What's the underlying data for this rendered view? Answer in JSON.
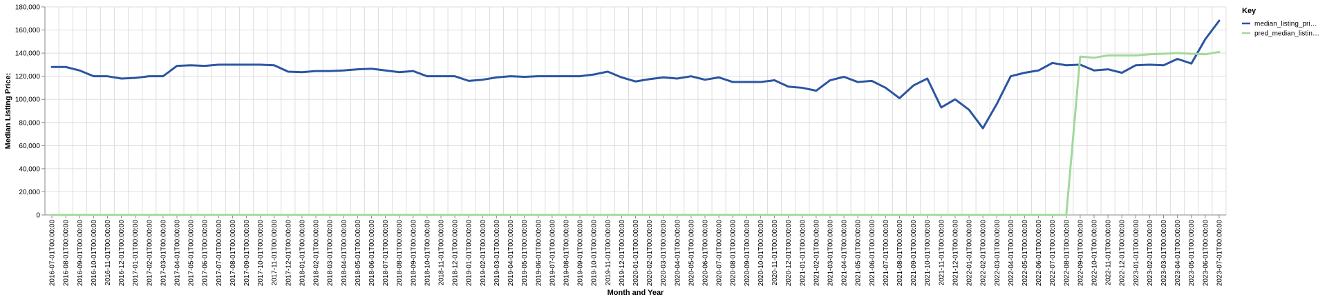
{
  "chart_data": {
    "type": "line",
    "xlabel": "Month and Year",
    "ylabel": "Median Listing Price:",
    "ylim": [
      0,
      180000
    ],
    "y_ticks": [
      "0",
      "20,000",
      "40,000",
      "60,000",
      "80,000",
      "100,000",
      "120,000",
      "140,000",
      "160,000",
      "180,000"
    ],
    "grid": true,
    "legend": {
      "title": "Key",
      "placement": "top-right"
    },
    "x": [
      "2016-07-01T00:00:00",
      "2016-08-01T00:00:00",
      "2016-09-01T00:00:00",
      "2016-10-01T00:00:00",
      "2016-11-01T00:00:00",
      "2016-12-01T00:00:00",
      "2017-01-01T00:00:00",
      "2017-02-01T00:00:00",
      "2017-03-01T00:00:00",
      "2017-04-01T00:00:00",
      "2017-05-01T00:00:00",
      "2017-06-01T00:00:00",
      "2017-07-01T00:00:00",
      "2017-08-01T00:00:00",
      "2017-09-01T00:00:00",
      "2017-10-01T00:00:00",
      "2017-11-01T00:00:00",
      "2017-12-01T00:00:00",
      "2018-01-01T00:00:00",
      "2018-02-01T00:00:00",
      "2018-03-01T00:00:00",
      "2018-04-01T00:00:00",
      "2018-05-01T00:00:00",
      "2018-06-01T00:00:00",
      "2018-07-01T00:00:00",
      "2018-08-01T00:00:00",
      "2018-09-01T00:00:00",
      "2018-10-01T00:00:00",
      "2018-11-01T00:00:00",
      "2018-12-01T00:00:00",
      "2019-01-01T00:00:00",
      "2019-02-01T00:00:00",
      "2019-03-01T00:00:00",
      "2019-04-01T00:00:00",
      "2019-05-01T00:00:00",
      "2019-06-01T00:00:00",
      "2019-07-01T00:00:00",
      "2019-08-01T00:00:00",
      "2019-09-01T00:00:00",
      "2019-10-01T00:00:00",
      "2019-11-01T00:00:00",
      "2019-12-01T00:00:00",
      "2020-01-01T00:00:00",
      "2020-02-01T00:00:00",
      "2020-03-01T00:00:00",
      "2020-04-01T00:00:00",
      "2020-05-01T00:00:00",
      "2020-06-01T00:00:00",
      "2020-07-01T00:00:00",
      "2020-08-01T00:00:00",
      "2020-09-01T00:00:00",
      "2020-10-01T00:00:00",
      "2020-11-01T00:00:00",
      "2020-12-01T00:00:00",
      "2021-01-01T00:00:00",
      "2021-02-01T00:00:00",
      "2021-03-01T00:00:00",
      "2021-04-01T00:00:00",
      "2021-05-01T00:00:00",
      "2021-06-01T00:00:00",
      "2021-07-01T00:00:00",
      "2021-08-01T00:00:00",
      "2021-09-01T00:00:00",
      "2021-10-01T00:00:00",
      "2021-11-01T00:00:00",
      "2021-12-01T00:00:00",
      "2022-01-01T00:00:00",
      "2022-02-01T00:00:00",
      "2022-03-01T00:00:00",
      "2022-04-01T00:00:00",
      "2022-05-01T00:00:00",
      "2022-06-01T00:00:00",
      "2022-07-01T00:00:00",
      "2022-08-01T00:00:00",
      "2022-09-01T00:00:00",
      "2022-10-01T00:00:00",
      "2022-11-01T00:00:00",
      "2022-12-01T00:00:00",
      "2023-01-01T00:00:00",
      "2023-02-01T00:00:00",
      "2023-03-01T00:00:00",
      "2023-04-01T00:00:00",
      "2023-05-01T00:00:00",
      "2023-06-01T00:00:00",
      "2023-07-01T00:00:00"
    ],
    "series": [
      {
        "name": "median_listing_pri…",
        "color": "#2b55a1",
        "values": [
          128000,
          128000,
          125000,
          120000,
          120000,
          118000,
          118500,
          120000,
          120000,
          129000,
          129500,
          129000,
          130000,
          130000,
          130000,
          130000,
          129500,
          124000,
          123500,
          124500,
          124500,
          125000,
          126000,
          126500,
          125000,
          123500,
          124500,
          120000,
          120000,
          120000,
          116000,
          117000,
          119000,
          120000,
          119500,
          120000,
          120000,
          120000,
          120000,
          121500,
          124000,
          119000,
          115500,
          117500,
          119000,
          118000,
          120000,
          117000,
          119000,
          115000,
          115000,
          115000,
          116500,
          111000,
          110000,
          107500,
          116500,
          119500,
          115000,
          116000,
          110000,
          101000,
          112000,
          118000,
          93000,
          100000,
          91000,
          75000,
          96000,
          120000,
          123000,
          125000,
          131500,
          129500,
          130000,
          125000,
          126000,
          123000,
          129500,
          130000,
          129500,
          135000,
          131000,
          152000,
          168000
        ]
      },
      {
        "name": "pred_median_listin…",
        "color": "#a1d99b",
        "values": [
          0,
          0,
          0,
          0,
          0,
          0,
          0,
          0,
          0,
          0,
          0,
          0,
          0,
          0,
          0,
          0,
          0,
          0,
          0,
          0,
          0,
          0,
          0,
          0,
          0,
          0,
          0,
          0,
          0,
          0,
          0,
          0,
          0,
          0,
          0,
          0,
          0,
          0,
          0,
          0,
          0,
          0,
          0,
          0,
          0,
          0,
          0,
          0,
          0,
          0,
          0,
          0,
          0,
          0,
          0,
          0,
          0,
          0,
          0,
          0,
          0,
          0,
          0,
          0,
          0,
          0,
          0,
          0,
          0,
          0,
          0,
          0,
          0,
          0,
          137000,
          136000,
          138000,
          138000,
          138000,
          139000,
          139500,
          140000,
          139500,
          139000,
          141000
        ]
      }
    ]
  }
}
